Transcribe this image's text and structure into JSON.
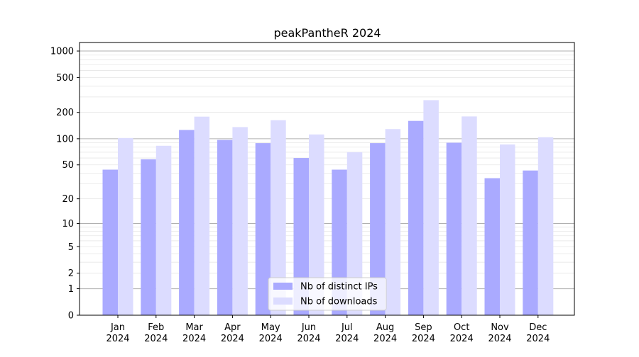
{
  "chart_data": {
    "type": "bar",
    "title": "peakPantheR 2024",
    "xlabel": "",
    "ylabel": "",
    "yscale": "log(y+1)",
    "grid": true,
    "legend_position": "bottom-center",
    "categories": [
      [
        "Jan",
        "2024"
      ],
      [
        "Feb",
        "2024"
      ],
      [
        "Mar",
        "2024"
      ],
      [
        "Apr",
        "2024"
      ],
      [
        "May",
        "2024"
      ],
      [
        "Jun",
        "2024"
      ],
      [
        "Jul",
        "2024"
      ],
      [
        "Aug",
        "2024"
      ],
      [
        "Sep",
        "2024"
      ],
      [
        "Oct",
        "2024"
      ],
      [
        "Nov",
        "2024"
      ],
      [
        "Dec",
        "2024"
      ]
    ],
    "y_ticks": [
      0,
      1,
      2,
      5,
      10,
      20,
      50,
      100,
      200,
      500,
      1000
    ],
    "y_tick_labels": [
      "0",
      "1",
      "2",
      "5",
      "10",
      "20",
      "50",
      "100",
      "200",
      "500",
      "1000"
    ],
    "series": [
      {
        "name": "Nb of distinct IPs",
        "color": "#aaaaff",
        "values": [
          44,
          58,
          126,
          97,
          89,
          60,
          44,
          89,
          160,
          90,
          35,
          43
        ]
      },
      {
        "name": "Nb of downloads",
        "color": "#dcdcff",
        "values": [
          102,
          83,
          179,
          136,
          163,
          112,
          70,
          129,
          276,
          180,
          86,
          104
        ]
      }
    ]
  }
}
